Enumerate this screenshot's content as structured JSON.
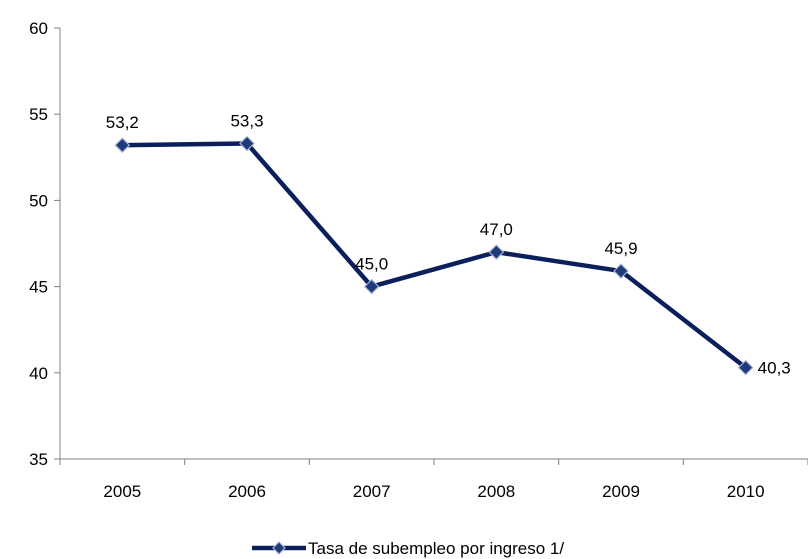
{
  "chart_data": {
    "type": "line",
    "categories": [
      "2005",
      "2006",
      "2007",
      "2008",
      "2009",
      "2010"
    ],
    "series": [
      {
        "name": "Tasa de subempleo por ingreso 1/",
        "values": [
          53.2,
          53.3,
          45.0,
          47.0,
          45.9,
          40.3
        ],
        "data_labels": [
          "53,2",
          "53,3",
          "45,0",
          "47,0",
          "45,9",
          "40,3"
        ],
        "color": "#0b1f5c"
      }
    ],
    "y_ticks": [
      "35",
      "40",
      "45",
      "50",
      "55",
      "60"
    ],
    "ylim": [
      35,
      60
    ],
    "grid": false,
    "legend_position": "bottom"
  }
}
